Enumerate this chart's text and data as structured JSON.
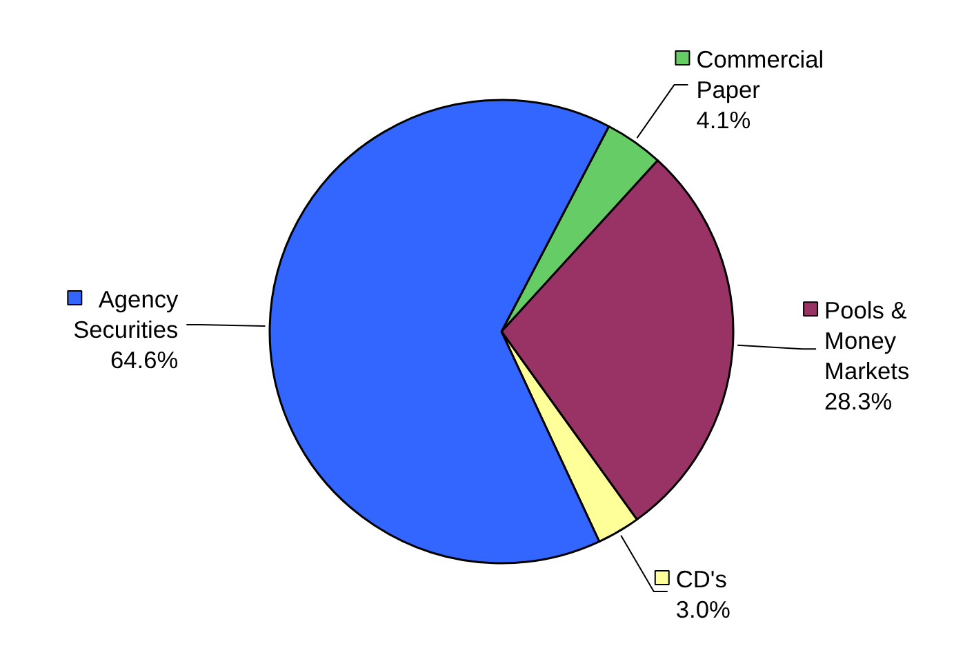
{
  "chart_data": {
    "type": "pie",
    "categories": [
      "Commercial Paper",
      "Pools & Money Markets",
      "CD's",
      "Agency Securities"
    ],
    "values": [
      4.1,
      28.3,
      3.0,
      64.6
    ],
    "value_labels": [
      "4.1%",
      "28.3%",
      "3.0%",
      "64.6%"
    ],
    "colors": [
      "#66cc66",
      "#993366",
      "#ffff99",
      "#3366ff"
    ],
    "legend": true
  }
}
